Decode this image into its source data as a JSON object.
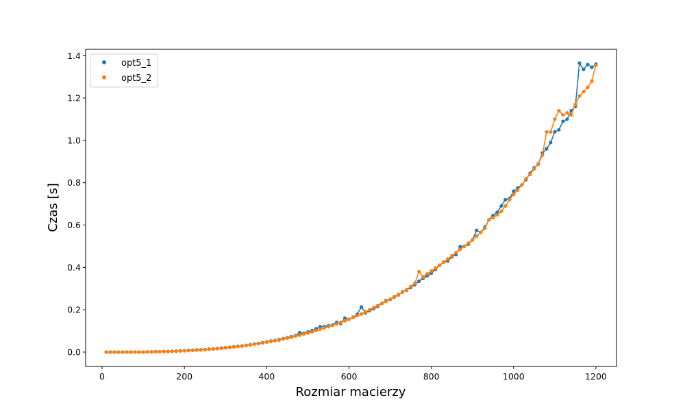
{
  "chart_data": {
    "type": "line",
    "xlabel": "Rozmiar macierzy",
    "ylabel": "Czas [s]",
    "xlim": [
      -40,
      1250
    ],
    "ylim": [
      -0.068,
      1.43
    ],
    "xticks": [
      0,
      200,
      400,
      600,
      800,
      1000,
      1200
    ],
    "xtick_labels": [
      "0",
      "200",
      "400",
      "600",
      "800",
      "1000",
      "1200"
    ],
    "yticks": [
      0.0,
      0.2,
      0.4,
      0.6,
      0.8,
      1.0,
      1.2,
      1.4
    ],
    "ytick_labels": [
      "0.0",
      "0.2",
      "0.4",
      "0.6",
      "0.8",
      "1.0",
      "1.2",
      "1.4"
    ],
    "grid": false,
    "legend_position": "top-left",
    "x": [
      10,
      20,
      30,
      40,
      50,
      60,
      70,
      80,
      90,
      100,
      110,
      120,
      130,
      140,
      150,
      160,
      170,
      180,
      190,
      200,
      210,
      220,
      230,
      240,
      250,
      260,
      270,
      280,
      290,
      300,
      310,
      320,
      330,
      340,
      350,
      360,
      370,
      380,
      390,
      400,
      410,
      420,
      430,
      440,
      450,
      460,
      470,
      480,
      490,
      500,
      510,
      520,
      530,
      540,
      550,
      560,
      570,
      580,
      590,
      600,
      610,
      620,
      630,
      640,
      650,
      660,
      670,
      680,
      690,
      700,
      710,
      720,
      730,
      740,
      750,
      760,
      770,
      780,
      790,
      800,
      810,
      820,
      830,
      840,
      850,
      860,
      870,
      880,
      890,
      900,
      910,
      920,
      930,
      940,
      950,
      960,
      970,
      980,
      990,
      1000,
      1010,
      1020,
      1030,
      1040,
      1050,
      1060,
      1070,
      1080,
      1090,
      1100,
      1110,
      1120,
      1130,
      1140,
      1150,
      1160,
      1170,
      1180,
      1190,
      1200
    ],
    "series": [
      {
        "name": "opt5_1",
        "color": "#1f77b4",
        "values": [
          0.0,
          0.0,
          0.0,
          0.0,
          0.0,
          0.0,
          0.0,
          0.0,
          0.0,
          0.0,
          0.001,
          0.001,
          0.002,
          0.002,
          0.003,
          0.003,
          0.004,
          0.005,
          0.006,
          0.007,
          0.008,
          0.009,
          0.01,
          0.011,
          0.012,
          0.014,
          0.015,
          0.017,
          0.019,
          0.021,
          0.023,
          0.025,
          0.027,
          0.029,
          0.032,
          0.035,
          0.038,
          0.041,
          0.045,
          0.048,
          0.052,
          0.055,
          0.059,
          0.064,
          0.068,
          0.073,
          0.078,
          0.092,
          0.088,
          0.095,
          0.102,
          0.11,
          0.12,
          0.12,
          0.125,
          0.128,
          0.14,
          0.135,
          0.16,
          0.155,
          0.165,
          0.178,
          0.213,
          0.185,
          0.195,
          0.205,
          0.215,
          0.23,
          0.243,
          0.248,
          0.26,
          0.27,
          0.285,
          0.293,
          0.305,
          0.318,
          0.335,
          0.348,
          0.36,
          0.373,
          0.39,
          0.41,
          0.425,
          0.43,
          0.45,
          0.46,
          0.498,
          0.5,
          0.51,
          0.53,
          0.575,
          0.565,
          0.59,
          0.625,
          0.645,
          0.66,
          0.69,
          0.72,
          0.725,
          0.76,
          0.775,
          0.79,
          0.815,
          0.845,
          0.87,
          0.888,
          0.94,
          0.96,
          0.99,
          1.04,
          1.05,
          1.09,
          1.1,
          1.14,
          1.16,
          1.365,
          1.335,
          1.358,
          1.345,
          1.36
        ]
      },
      {
        "name": "opt5_2",
        "color": "#ff7f0e",
        "values": [
          0.0,
          0.0,
          0.0,
          0.0,
          0.0,
          0.0,
          0.0,
          0.0,
          0.0,
          0.0,
          0.001,
          0.001,
          0.001,
          0.002,
          0.002,
          0.003,
          0.003,
          0.004,
          0.005,
          0.006,
          0.007,
          0.008,
          0.009,
          0.01,
          0.012,
          0.013,
          0.015,
          0.016,
          0.018,
          0.02,
          0.022,
          0.024,
          0.026,
          0.028,
          0.031,
          0.034,
          0.037,
          0.04,
          0.043,
          0.047,
          0.05,
          0.054,
          0.057,
          0.062,
          0.066,
          0.07,
          0.076,
          0.08,
          0.085,
          0.09,
          0.096,
          0.102,
          0.108,
          0.114,
          0.12,
          0.126,
          0.133,
          0.14,
          0.148,
          0.155,
          0.163,
          0.172,
          0.18,
          0.19,
          0.2,
          0.21,
          0.22,
          0.23,
          0.24,
          0.25,
          0.262,
          0.272,
          0.283,
          0.295,
          0.31,
          0.325,
          0.38,
          0.355,
          0.37,
          0.383,
          0.397,
          0.41,
          0.425,
          0.44,
          0.455,
          0.47,
          0.485,
          0.5,
          0.515,
          0.53,
          0.548,
          0.565,
          0.585,
          0.625,
          0.635,
          0.648,
          0.665,
          0.69,
          0.72,
          0.745,
          0.765,
          0.79,
          0.82,
          0.84,
          0.865,
          0.89,
          0.93,
          1.04,
          1.04,
          1.1,
          1.14,
          1.12,
          1.13,
          1.12,
          1.17,
          1.21,
          1.23,
          1.25,
          1.28,
          1.355
        ]
      }
    ]
  }
}
